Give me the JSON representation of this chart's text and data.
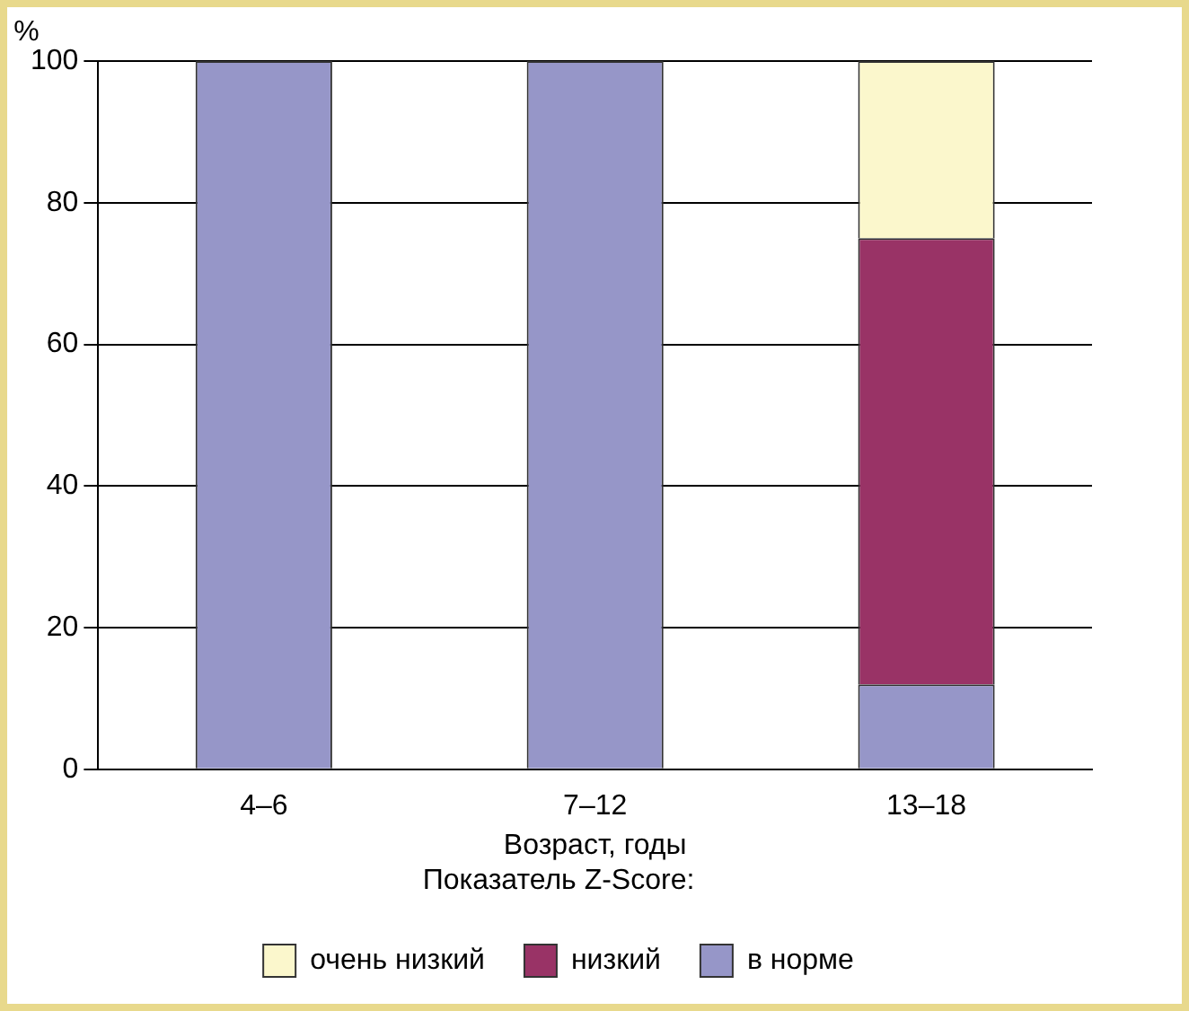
{
  "chart_data": {
    "type": "bar",
    "stacked": true,
    "categories": [
      "4–6",
      "7–12",
      "13–18"
    ],
    "series": [
      {
        "name": "в норме",
        "color": "#9696c8",
        "values": [
          100,
          100,
          12
        ]
      },
      {
        "name": "низкий",
        "color": "#993366",
        "values": [
          0,
          0,
          63
        ]
      },
      {
        "name": "очень низкий",
        "color": "#fbf7cc",
        "values": [
          0,
          0,
          25
        ]
      }
    ],
    "ylim": [
      0,
      100
    ],
    "yticks": [
      0,
      20,
      40,
      60,
      80,
      100
    ],
    "ylabel": "%",
    "xlabel": "Возраст, годы",
    "legend_title": "Показатель Z-Score:",
    "legend": "bottom",
    "grid": "y"
  }
}
